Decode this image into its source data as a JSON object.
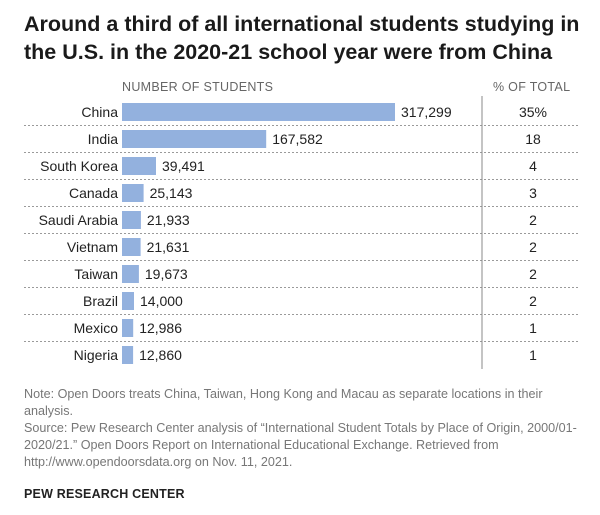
{
  "header": {
    "title": "Around a third of all international students studying in the U.S. in the 2020-21 school year were from China",
    "col_students": "NUMBER OF STUDENTS",
    "col_percent": "% OF TOTAL"
  },
  "chart_data": {
    "type": "bar",
    "orientation": "horizontal",
    "categories": [
      "China",
      "India",
      "South Korea",
      "Canada",
      "Saudi Arabia",
      "Vietnam",
      "Taiwan",
      "Brazil",
      "Mexico",
      "Nigeria"
    ],
    "values": [
      317299,
      167582,
      39491,
      25143,
      21933,
      21631,
      19673,
      14000,
      12986,
      12860
    ],
    "value_labels": [
      "317,299",
      "167,582",
      "39,491",
      "25,143",
      "21,933",
      "21,631",
      "19,673",
      "14,000",
      "12,986",
      "12,860"
    ],
    "percent_labels": [
      "35%",
      "18",
      "4",
      "3",
      "2",
      "2",
      "2",
      "2",
      "1",
      "1"
    ],
    "bar_color": "#93b1de",
    "grid": false
  },
  "notes": {
    "note": "Note: Open Doors treats China, Taiwan, Hong Kong and Macau as separate locations in their analysis.",
    "source": "Source: Pew Research Center analysis of “International Student Totals by Place of Origin, 2000/01-2020/21.” Open Doors Report on International Educational Exchange. Retrieved from http://www.opendoorsdata.org on Nov. 11, 2021."
  },
  "brand": "PEW RESEARCH CENTER"
}
